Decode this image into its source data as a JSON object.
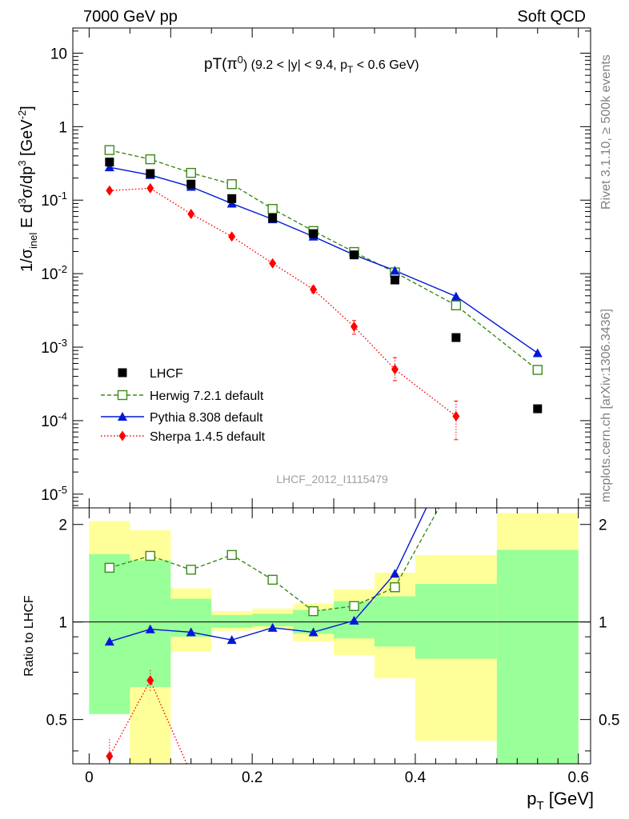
{
  "header": {
    "left_label": "7000 GeV pp",
    "right_label": "Soft QCD"
  },
  "side_text": {
    "rivet": "Rivet 3.1.10, ≥ 500k events",
    "mcplots": "mcplots.cern.ch [arXiv:1306.3436]"
  },
  "colors": {
    "lhcf": "#000000",
    "herwig": "#3a8a17",
    "pythia": "#0018d8",
    "sherpa": "#ff0000",
    "band_inner": "#99ff99",
    "band_outer": "#ffff99"
  },
  "chart_data": [
    {
      "type": "scatter",
      "title_main": "pT(π",
      "title_sup": "0",
      "title_mid": ") (9.2 < |y| < 9.4, p",
      "title_sub": "T",
      "title_end": " < 0.6 GeV)",
      "analysis_id": "LHCF_2012_I1115479",
      "ylabel": "1/σinel E d3σ/dp3 [GeV-2]",
      "yscale": "log",
      "ylim": [
        6.5e-06,
        22
      ],
      "xlim": [
        -0.02,
        0.615
      ],
      "ytick_labels": [
        {
          "base": "10",
          "exp": "",
          "v": 10
        },
        {
          "base": "1",
          "exp": "",
          "v": 1
        },
        {
          "base": "10",
          "exp": "-1",
          "v": 0.1
        },
        {
          "base": "10",
          "exp": "-2",
          "v": 0.01
        },
        {
          "base": "10",
          "exp": "-3",
          "v": 0.001
        },
        {
          "base": "10",
          "exp": "-4",
          "v": 0.0001
        },
        {
          "base": "10",
          "exp": "-5",
          "v": 1e-05
        }
      ],
      "series": [
        {
          "name": "LHCF",
          "style": "markers",
          "x": [
            0.025,
            0.075,
            0.125,
            0.175,
            0.225,
            0.275,
            0.325,
            0.375,
            0.45,
            0.55
          ],
          "y": [
            0.33,
            0.23,
            0.165,
            0.105,
            0.057,
            0.035,
            0.018,
            0.0082,
            0.00135,
            0.000145
          ]
        },
        {
          "name": "Herwig 7.2.1 default",
          "style": "dashed",
          "x": [
            0.025,
            0.075,
            0.125,
            0.175,
            0.225,
            0.275,
            0.325,
            0.375,
            0.45,
            0.55
          ],
          "y": [
            0.48,
            0.36,
            0.235,
            0.165,
            0.076,
            0.038,
            0.0197,
            0.0104,
            0.0037,
            0.00049
          ]
        },
        {
          "name": "Pythia 8.308 default",
          "style": "solid",
          "x": [
            0.025,
            0.075,
            0.125,
            0.175,
            0.225,
            0.275,
            0.325,
            0.375,
            0.45,
            0.55
          ],
          "y": [
            0.28,
            0.22,
            0.152,
            0.09,
            0.055,
            0.032,
            0.018,
            0.011,
            0.0049,
            0.00083
          ]
        },
        {
          "name": "Sherpa 1.4.5 default",
          "style": "dotted",
          "x": [
            0.025,
            0.075,
            0.125,
            0.175,
            0.225,
            0.275,
            0.325,
            0.375,
            0.45
          ],
          "y": [
            0.135,
            0.145,
            0.065,
            0.032,
            0.0138,
            0.0061,
            0.0019,
            0.0005,
            0.000115
          ],
          "err_lo": [
            0.008,
            0.009,
            0.004,
            0.002,
            0.0009,
            0.0006,
            0.0004,
            0.00015,
            6e-05
          ],
          "err_hi": [
            0.008,
            0.009,
            0.004,
            0.002,
            0.0009,
            0.0006,
            0.0004,
            0.00022,
            7e-05
          ]
        }
      ]
    },
    {
      "type": "line",
      "ylabel": "Ratio to LHCF",
      "xlabel_main": "p",
      "xlabel_sub": "T",
      "xlabel_unit": " [GeV]",
      "ylim": [
        0.365,
        2.25
      ],
      "xlim": [
        -0.02,
        0.615
      ],
      "xticks": [
        0,
        0.2,
        0.4,
        0.6
      ],
      "xtick_labels": [
        "0",
        "0.2",
        "0.4",
        "0.6"
      ],
      "yticks": [
        0.5,
        1,
        2
      ],
      "ytick_labels": [
        "0.5",
        "1",
        "2"
      ],
      "bands": [
        {
          "x0": 0.0,
          "x1": 0.05,
          "outer": [
            0.52,
            2.05
          ],
          "inner": [
            0.52,
            1.62
          ]
        },
        {
          "x0": 0.05,
          "x1": 0.1,
          "outer": [
            0.35,
            1.92
          ],
          "inner": [
            0.63,
            1.55
          ]
        },
        {
          "x0": 0.1,
          "x1": 0.15,
          "outer": [
            0.81,
            1.27
          ],
          "inner": [
            0.9,
            1.18
          ]
        },
        {
          "x0": 0.15,
          "x1": 0.2,
          "outer": [
            0.94,
            1.08
          ],
          "inner": [
            0.96,
            1.05
          ]
        },
        {
          "x0": 0.2,
          "x1": 0.25,
          "outer": [
            0.95,
            1.1
          ],
          "inner": [
            0.97,
            1.06
          ]
        },
        {
          "x0": 0.25,
          "x1": 0.3,
          "outer": [
            0.87,
            1.14
          ],
          "inner": [
            0.92,
            1.09
          ]
        },
        {
          "x0": 0.3,
          "x1": 0.35,
          "outer": [
            0.79,
            1.26
          ],
          "inner": [
            0.89,
            1.16
          ]
        },
        {
          "x0": 0.35,
          "x1": 0.4,
          "outer": [
            0.67,
            1.42
          ],
          "inner": [
            0.84,
            1.2
          ]
        },
        {
          "x0": 0.4,
          "x1": 0.5,
          "outer": [
            0.43,
            1.61
          ],
          "inner": [
            0.77,
            1.31
          ]
        },
        {
          "x0": 0.5,
          "x1": 0.6,
          "outer": [
            0.34,
            2.17
          ],
          "inner": [
            0.34,
            1.67
          ]
        }
      ],
      "series": [
        {
          "name": "Herwig 7.2.1 default",
          "style": "dashed",
          "x": [
            0.025,
            0.075,
            0.125,
            0.175,
            0.225,
            0.275,
            0.325,
            0.375,
            0.45
          ],
          "y": [
            1.47,
            1.6,
            1.45,
            1.61,
            1.35,
            1.08,
            1.12,
            1.28,
            2.8
          ]
        },
        {
          "name": "Pythia 8.308 default",
          "style": "solid",
          "x": [
            0.025,
            0.075,
            0.125,
            0.175,
            0.225,
            0.275,
            0.325,
            0.375,
            0.45
          ],
          "y": [
            0.87,
            0.95,
            0.93,
            0.88,
            0.96,
            0.93,
            1.01,
            1.41,
            3.5
          ]
        },
        {
          "name": "Sherpa 1.4.5 default",
          "style": "dotted",
          "x": [
            0.025,
            0.075,
            0.125
          ],
          "y": [
            0.385,
            0.66,
            0.34
          ]
        }
      ]
    }
  ]
}
